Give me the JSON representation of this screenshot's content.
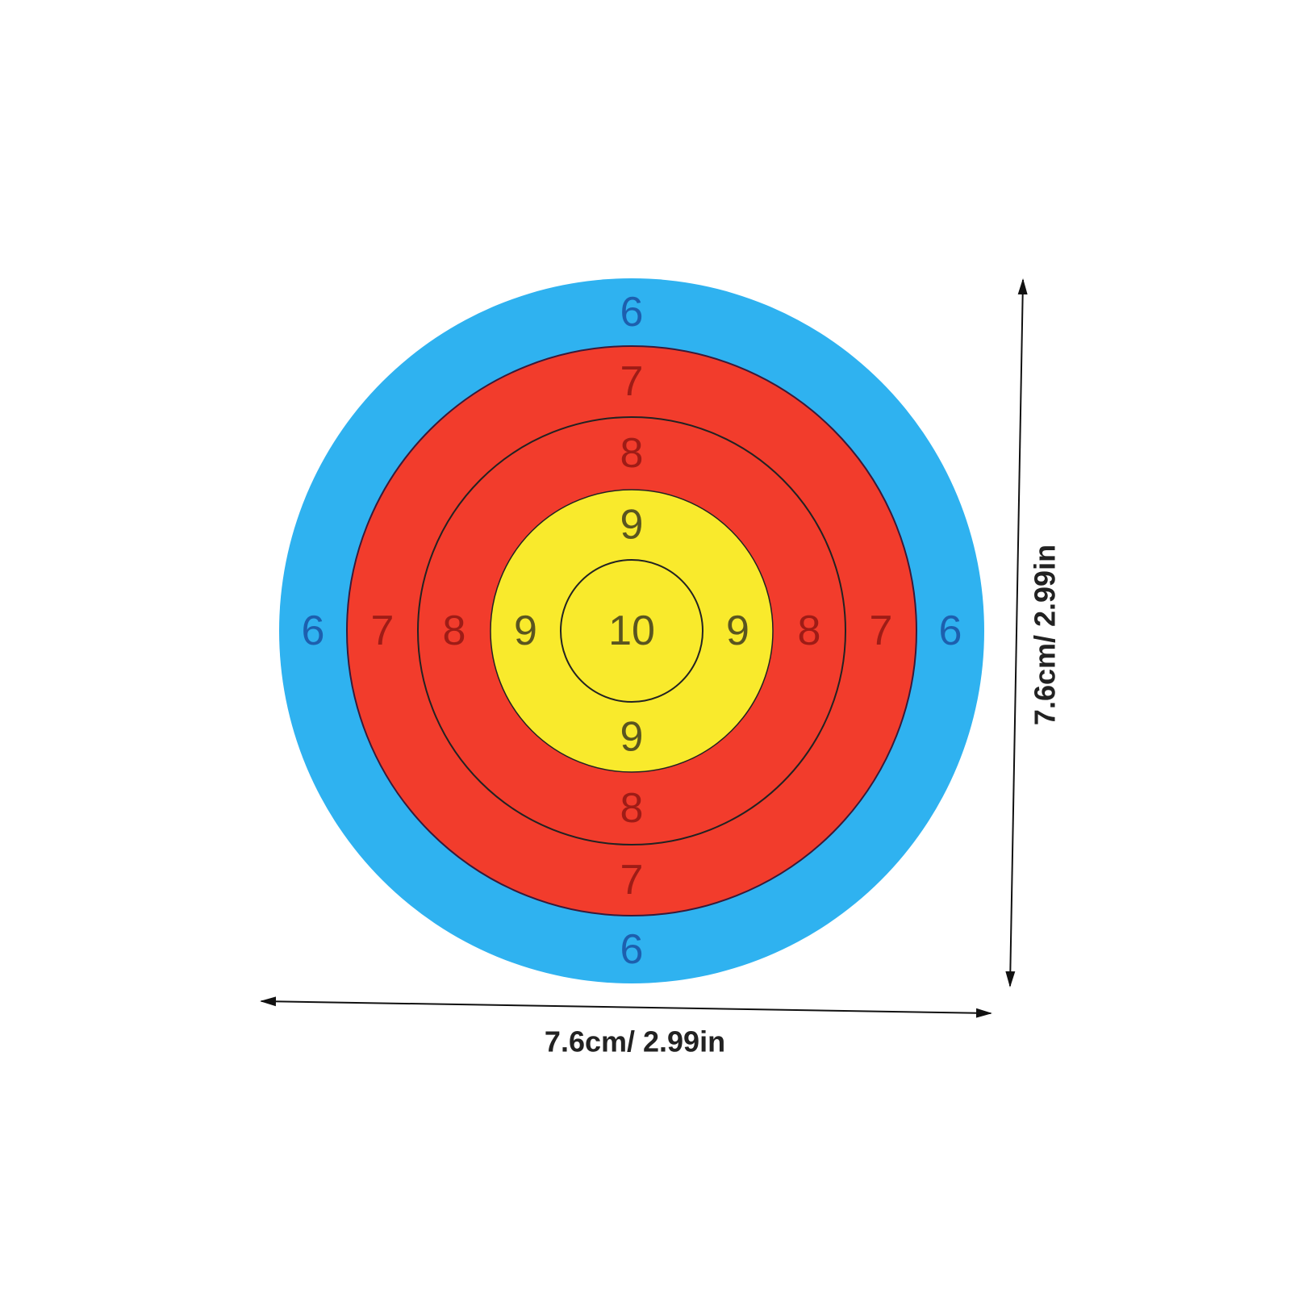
{
  "target": {
    "rings": [
      {
        "label": "6",
        "color": "#2fb2f0",
        "text_color": "#1d5fae"
      },
      {
        "label": "7",
        "color": "#f23c2c",
        "text_color": "#9e1c16"
      },
      {
        "label": "8",
        "color": "#f23c2c",
        "text_color": "#9e1c16"
      },
      {
        "label": "9",
        "color": "#f9ea2c",
        "text_color": "#5a5520"
      },
      {
        "label": "10",
        "color": "#f9ea2c",
        "text_color": "#5a5520"
      }
    ]
  },
  "dimensions": {
    "width_label": "7.6cm/ 2.99in",
    "height_label": "7.6cm/ 2.99in"
  }
}
